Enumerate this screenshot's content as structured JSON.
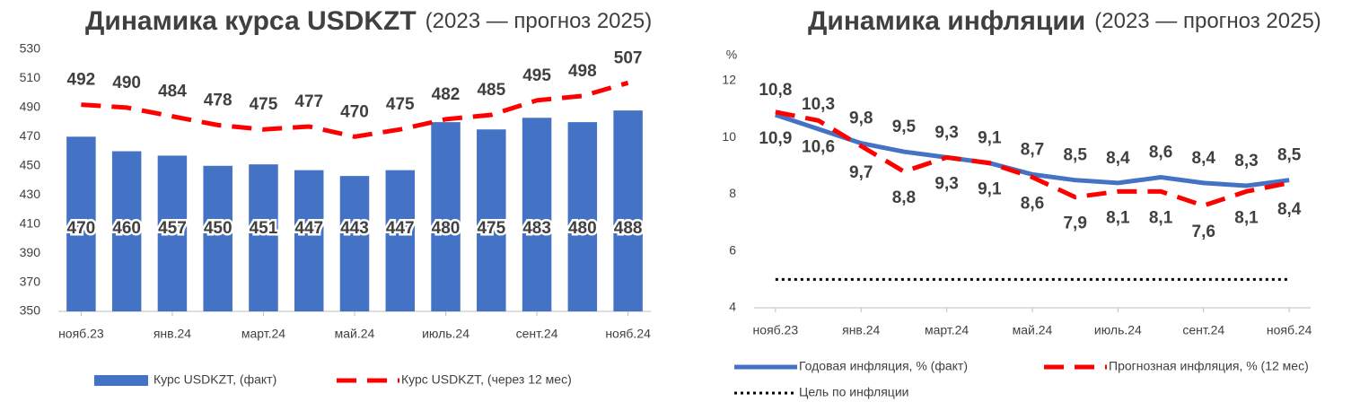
{
  "chart_data": [
    {
      "type": "bar_line",
      "title": "Динамика курса USDKZT",
      "subtitle": "(2023 — прогноз 2025)",
      "categories": [
        "нояб.23",
        null,
        "янв.24",
        null,
        "март.24",
        null,
        "май.24",
        null,
        "июль.24",
        null,
        "сент.24",
        null,
        "нояб.24"
      ],
      "series": [
        {
          "name": "Курс USDKZT, (факт)",
          "kind": "bar",
          "color": "#4472c4",
          "values": [
            470,
            460,
            457,
            450,
            451,
            447,
            443,
            447,
            480,
            475,
            483,
            480,
            488
          ]
        },
        {
          "name": "Курс USDKZT, (через 12 мес)",
          "kind": "dashed",
          "color": "#ff0000",
          "values": [
            492,
            490,
            484,
            478,
            475,
            477,
            470,
            475,
            482,
            485,
            495,
            498,
            507
          ]
        }
      ],
      "ylim": [
        350,
        530
      ],
      "yticks": [
        350,
        370,
        390,
        410,
        430,
        450,
        470,
        490,
        510,
        530
      ],
      "grid": false
    },
    {
      "type": "line",
      "title": "Динамика инфляции",
      "subtitle": "(2023 — прогноз 2025)",
      "ylabel": "%",
      "categories": [
        "нояб.23",
        null,
        "янв.24",
        null,
        "март.24",
        null,
        "май.24",
        null,
        "июль.24",
        null,
        "сент.24",
        null,
        "нояб.24"
      ],
      "series": [
        {
          "name": "Годовая инфляция, % (факт)",
          "kind": "solid",
          "color": "#4472c4",
          "label_side": "above",
          "values": [
            10.8,
            10.3,
            9.8,
            9.5,
            9.3,
            9.1,
            8.7,
            8.5,
            8.4,
            8.6,
            8.4,
            8.3,
            8.5
          ],
          "value_labels": [
            "10,8",
            "10,3",
            "9,8",
            "9,5",
            "9,3",
            "9,1",
            "8,7",
            "8,5",
            "8,4",
            "8,6",
            "8,4",
            "8,3",
            "8,5"
          ]
        },
        {
          "name": "Прогнозная инфляция, % (12 мес)",
          "kind": "dashed",
          "color": "#ff0000",
          "label_side": "below",
          "values": [
            10.9,
            10.6,
            9.7,
            8.8,
            9.3,
            9.1,
            8.6,
            7.9,
            8.1,
            8.1,
            7.6,
            8.1,
            8.4
          ],
          "value_labels": [
            "10,9",
            "10,6",
            "9,7",
            "8,8",
            "9,3",
            "9,1",
            "8,6",
            "7,9",
            "8,1",
            "8,1",
            "7,6",
            "8,1",
            "8,4"
          ]
        },
        {
          "name": "Цель по инфляции",
          "kind": "dotted",
          "color": "#000000",
          "values": [
            5,
            5,
            5,
            5,
            5,
            5,
            5,
            5,
            5,
            5,
            5,
            5,
            5
          ]
        }
      ],
      "ylim": [
        4,
        12
      ],
      "yticks": [
        4,
        6,
        8,
        10,
        12
      ],
      "grid": false
    }
  ]
}
